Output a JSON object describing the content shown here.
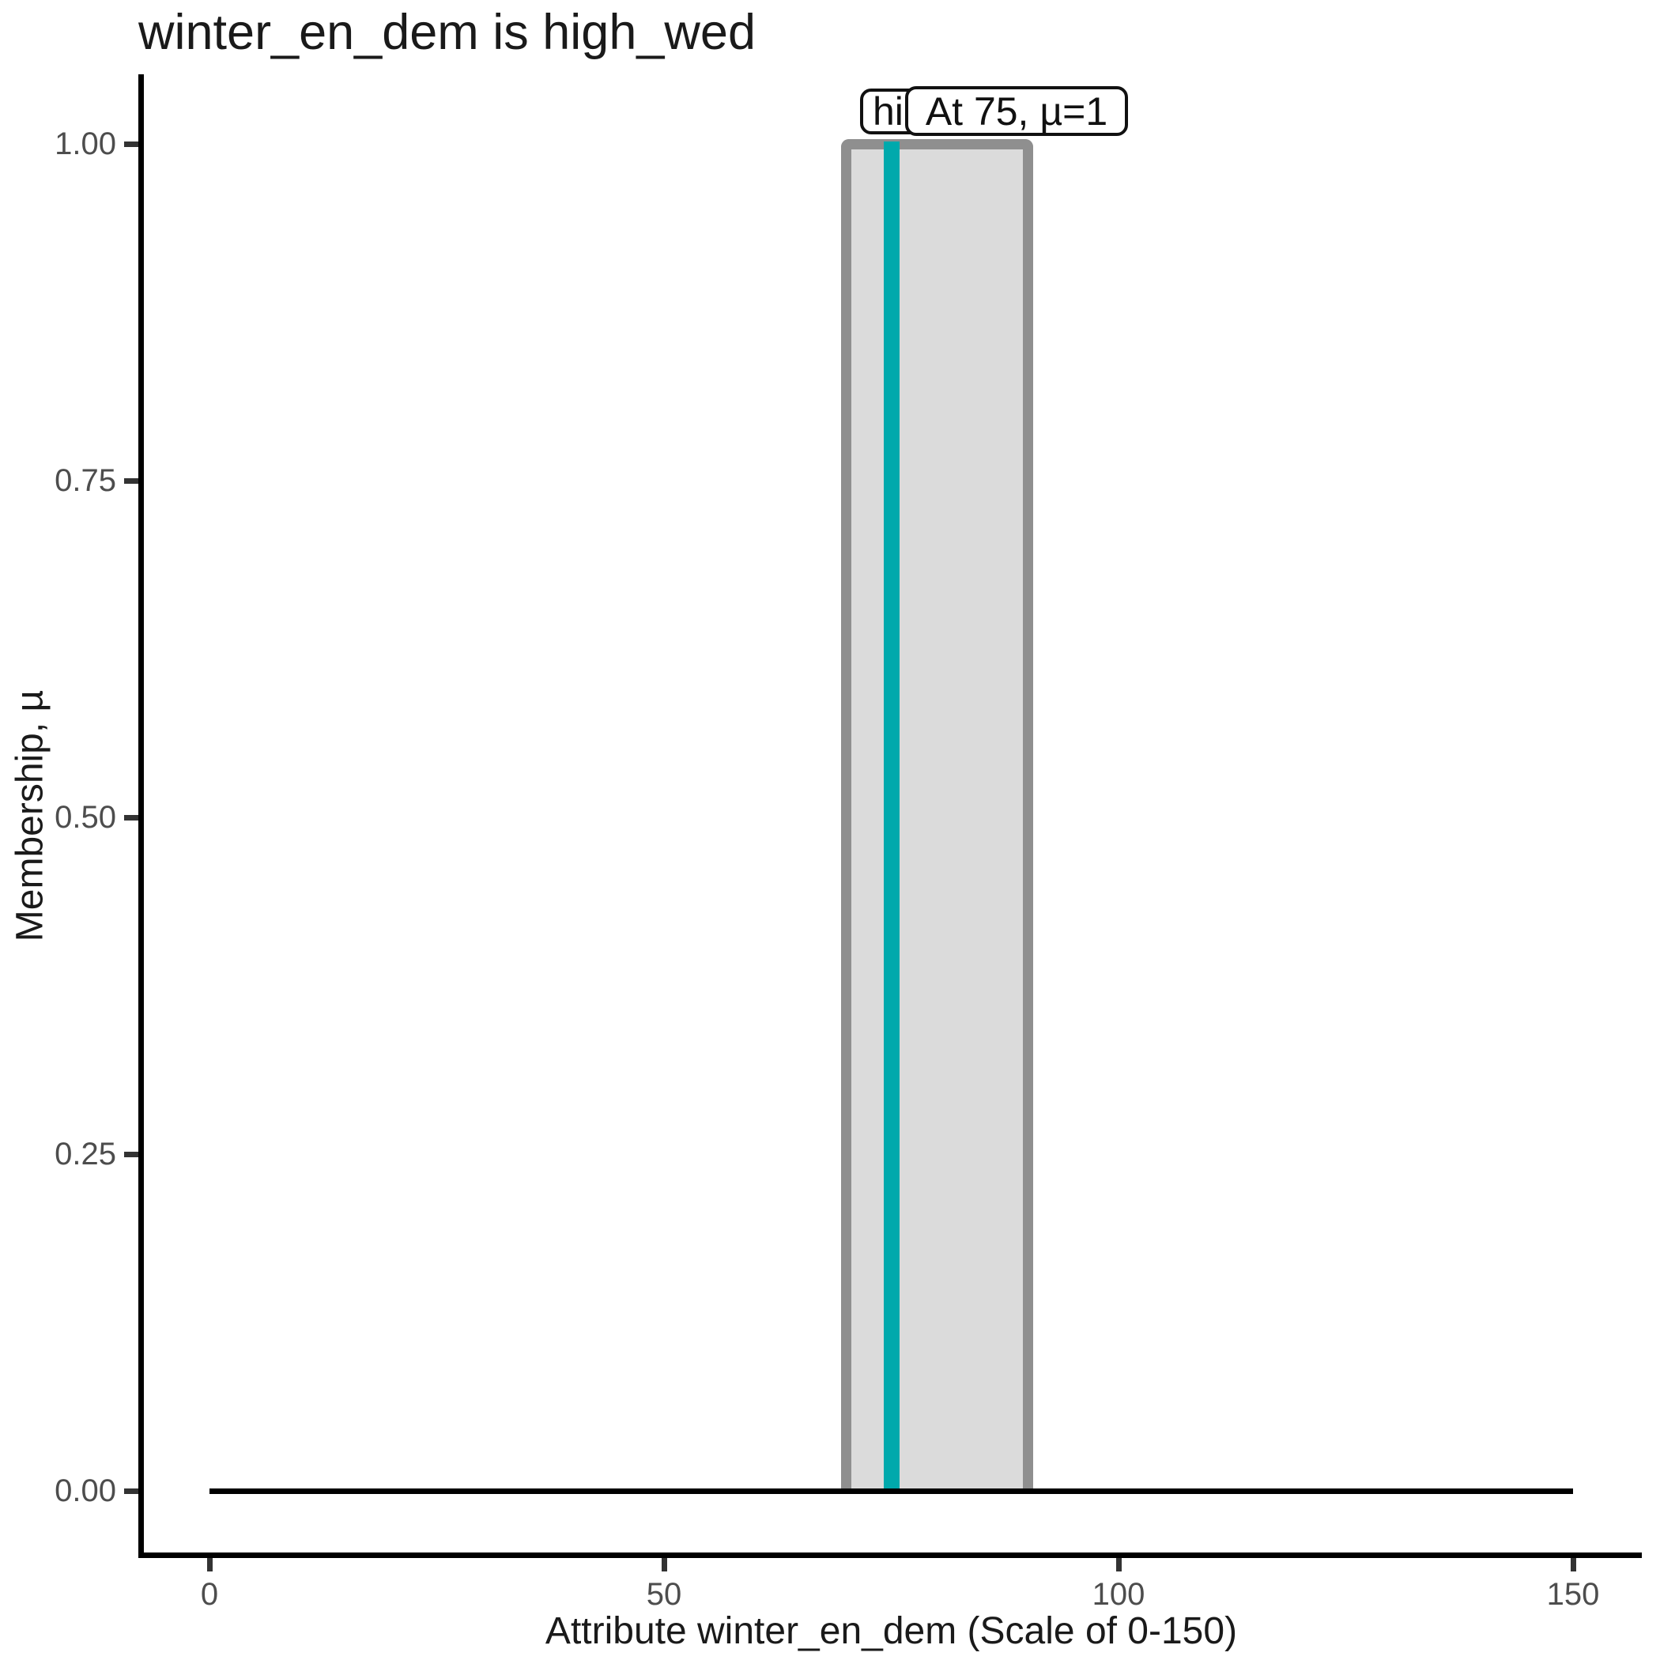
{
  "chart_data": {
    "type": "area",
    "title": "winter_en_dem is high_wed",
    "grid": "off",
    "legend": "none",
    "x_axis": {
      "label": "Attribute winter_en_dem (Scale of 0-150)",
      "range": [
        0,
        150
      ],
      "ticks": [
        {
          "value": 0,
          "label": "0"
        },
        {
          "value": 50,
          "label": "50"
        },
        {
          "value": 100,
          "label": "100"
        },
        {
          "value": 150,
          "label": "150"
        }
      ]
    },
    "y_axis": {
      "label": "Membership, µ",
      "range": [
        0,
        1
      ],
      "ticks": [
        {
          "value": 0,
          "label": "0.00"
        },
        {
          "value": 0.25,
          "label": "0.25"
        },
        {
          "value": 0.5,
          "label": "0.50"
        },
        {
          "value": 0.75,
          "label": "0.75"
        },
        {
          "value": 1,
          "label": "1.00"
        }
      ]
    },
    "series": [
      {
        "name": "high_wed",
        "shape": "rectangle",
        "x_from": 70,
        "x_to": 90,
        "mu_inside": 1,
        "mu_outside": 0
      }
    ],
    "marker": {
      "x": 75,
      "mu": 1,
      "callout": "At 75, µ=1"
    },
    "set_label_visible_text": "hi",
    "colors": {
      "background": "#FFFFFF",
      "title_text": "#1A1A1A",
      "axis_line": "#000000",
      "tick_mark": "#333333",
      "tick_label": "#4D4D4D",
      "axis_title": "#1A1A1A",
      "bar_fill": "#DBDBDB",
      "bar_border": "#8F8F8F",
      "marker_line": "#00A9AC",
      "zero_line": "#000000",
      "callout_bg": "#FFFFFF",
      "callout_border": "#111111",
      "callout_text": "#111111"
    }
  }
}
